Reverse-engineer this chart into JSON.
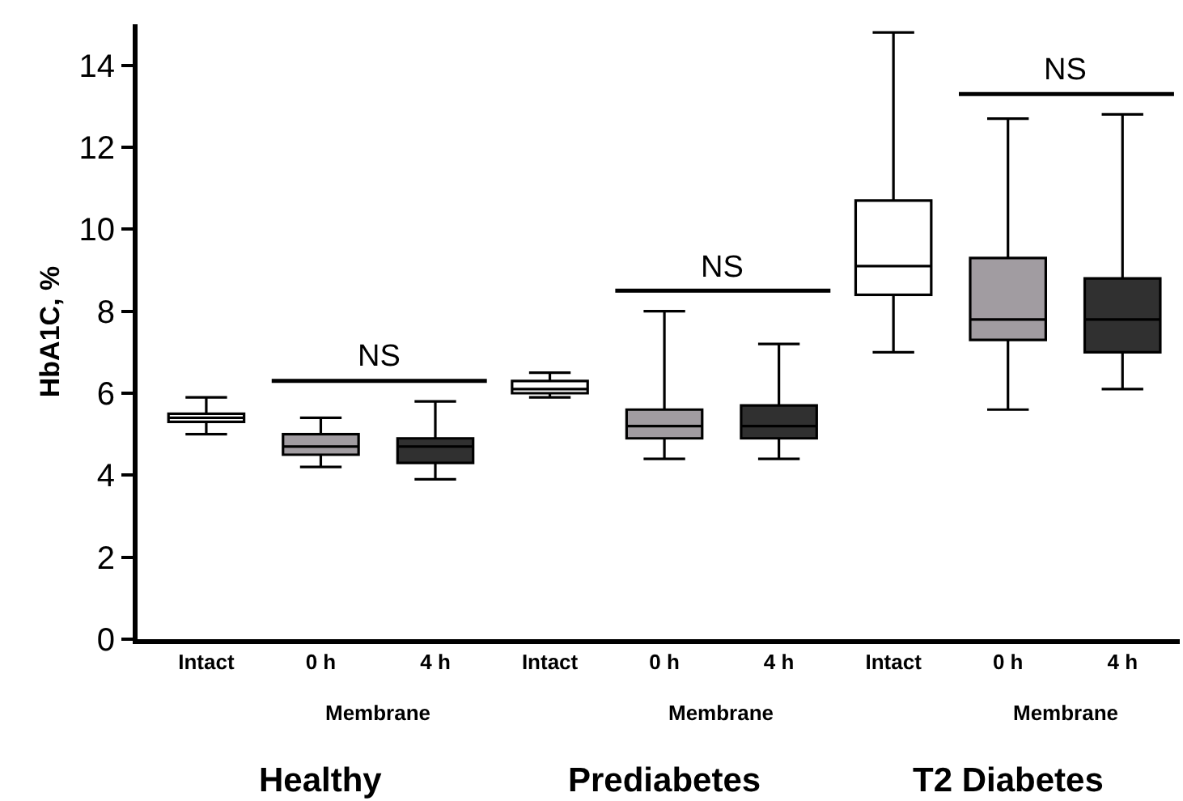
{
  "chart_data": {
    "type": "box",
    "ylabel": "HbA1C, %",
    "categories": [
      "Intact",
      "0 h",
      "4 h",
      "Intact",
      "0 h",
      "4 h",
      "Intact",
      "0 h",
      "4 h"
    ],
    "boxes": [
      {
        "low": 5.0,
        "q1": 5.3,
        "median": 5.4,
        "q3": 5.5,
        "high": 5.9
      },
      {
        "low": 4.2,
        "q1": 4.5,
        "median": 4.7,
        "q3": 5.0,
        "high": 5.4
      },
      {
        "low": 3.9,
        "q1": 4.3,
        "median": 4.7,
        "q3": 4.9,
        "high": 5.8
      },
      {
        "low": 5.9,
        "q1": 6.0,
        "median": 6.1,
        "q3": 6.3,
        "high": 6.5
      },
      {
        "low": 4.4,
        "q1": 4.9,
        "median": 5.2,
        "q3": 5.6,
        "high": 8.0
      },
      {
        "low": 4.4,
        "q1": 4.9,
        "median": 5.2,
        "q3": 5.7,
        "high": 7.2
      },
      {
        "low": 7.0,
        "q1": 8.4,
        "median": 9.1,
        "q3": 10.7,
        "high": 14.8
      },
      {
        "low": 5.6,
        "q1": 7.3,
        "median": 7.8,
        "q3": 9.3,
        "high": 12.7
      },
      {
        "low": 6.1,
        "q1": 7.0,
        "median": 7.8,
        "q3": 8.8,
        "high": 12.8
      }
    ],
    "colors": [
      "#ffffff",
      "#a19ca1",
      "#303030",
      "#ffffff",
      "#a19ca1",
      "#303030",
      "#ffffff",
      "#a19ca1",
      "#303030"
    ],
    "ylim": [
      0,
      15
    ],
    "yticks": [
      0,
      2,
      4,
      6,
      8,
      10,
      12,
      14
    ],
    "annotations": [
      "NS",
      "NS",
      "NS",
      "Membrane",
      "Membrane",
      "Membrane",
      "Healthy",
      "Prediabetes",
      "T2 Diabetes"
    ]
  }
}
